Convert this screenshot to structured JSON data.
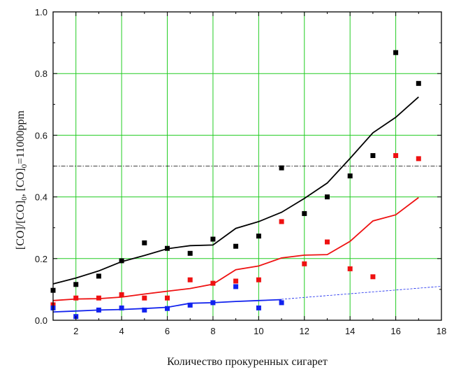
{
  "chart_data": {
    "type": "scatter",
    "title": "",
    "xlabel": "Количество прокуренных сигарет",
    "ylabel_parts": {
      "a": "[CO]/[CO]",
      "a_sub": "0",
      "sep": ",  [CO]",
      "b_sub": "0",
      "tail": "=11000ppm"
    },
    "xlim": [
      1,
      18
    ],
    "ylim": [
      0,
      1.0
    ],
    "x_ticks": [
      2,
      4,
      6,
      8,
      10,
      12,
      14,
      16,
      18
    ],
    "y_ticks": [
      0.0,
      0.2,
      0.4,
      0.6,
      0.8,
      1.0
    ],
    "y_tick_labels": [
      "0.0",
      "0.2",
      "0.4",
      "0.6",
      "0.8",
      "1.0"
    ],
    "grid": true,
    "grid_color": "#22cc22",
    "series": [
      {
        "color": "#000000",
        "points": {
          "x": [
            1,
            2,
            3,
            4,
            5,
            6,
            7,
            8,
            9,
            10,
            11,
            12,
            13,
            14,
            15,
            16,
            17
          ],
          "y": [
            0.097,
            0.116,
            0.143,
            0.193,
            0.251,
            0.233,
            0.217,
            0.263,
            0.24,
            0.273,
            0.494,
            0.346,
            0.4,
            0.468,
            0.534,
            0.868,
            0.768
          ]
        },
        "line": {
          "x": [
            1,
            2,
            3,
            4,
            5,
            6,
            7,
            8,
            9,
            10,
            11,
            12,
            13,
            14,
            15,
            16,
            17
          ],
          "y": [
            0.118,
            0.137,
            0.16,
            0.19,
            0.21,
            0.232,
            0.242,
            0.244,
            0.298,
            0.32,
            0.35,
            0.395,
            0.445,
            0.525,
            0.608,
            0.658,
            0.724
          ]
        }
      },
      {
        "color": "#ee1111",
        "points": {
          "x": [
            1,
            2,
            3,
            4,
            5,
            6,
            7,
            8,
            9,
            10,
            11,
            12,
            13,
            14,
            15,
            16,
            17
          ],
          "y": [
            0.05,
            0.072,
            0.072,
            0.083,
            0.072,
            0.072,
            0.131,
            0.12,
            0.127,
            0.131,
            0.32,
            0.183,
            0.254,
            0.167,
            0.141,
            0.534,
            0.524
          ]
        },
        "line": {
          "x": [
            1,
            2,
            3,
            4,
            5,
            6,
            7,
            8,
            9,
            10,
            11,
            12,
            13,
            14,
            15,
            16,
            17
          ],
          "y": [
            0.064,
            0.069,
            0.07,
            0.075,
            0.085,
            0.094,
            0.103,
            0.117,
            0.164,
            0.176,
            0.202,
            0.211,
            0.213,
            0.256,
            0.322,
            0.342,
            0.398
          ]
        }
      },
      {
        "color": "#1122ee",
        "points": {
          "x": [
            1,
            2,
            3,
            4,
            5,
            6,
            7,
            8,
            9,
            10,
            11
          ],
          "y": [
            0.04,
            0.012,
            0.033,
            0.04,
            0.033,
            0.038,
            0.049,
            0.057,
            0.109,
            0.04,
            0.057
          ]
        },
        "line": {
          "x": [
            1,
            2,
            3,
            4,
            5,
            6,
            7,
            8,
            9,
            10,
            11
          ],
          "y": [
            0.027,
            0.03,
            0.033,
            0.035,
            0.038,
            0.042,
            0.055,
            0.057,
            0.061,
            0.064,
            0.067
          ]
        },
        "extrapolation": {
          "x": [
            11,
            18
          ],
          "y": [
            0.068,
            0.11
          ]
        }
      }
    ],
    "reference_line": {
      "y": 0.5,
      "color": "#000000",
      "style": "dash-dot"
    }
  }
}
